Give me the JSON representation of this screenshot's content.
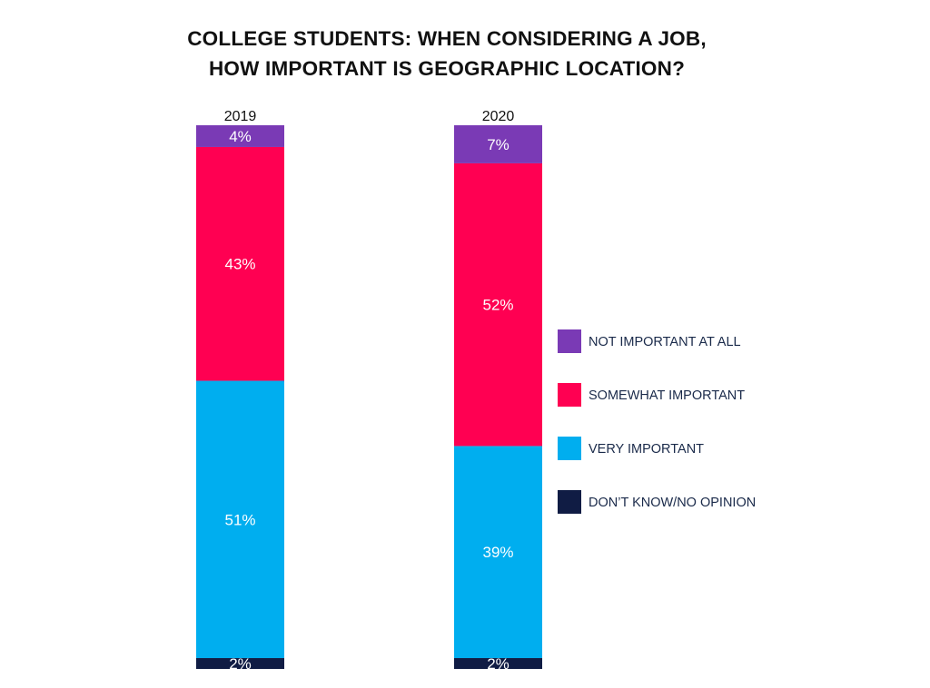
{
  "chart_data": {
    "type": "bar",
    "stacked": true,
    "orientation": "vertical",
    "title_lines": [
      "COLLEGE STUDENTS: WHEN CONSIDERING A JOB,",
      "HOW IMPORTANT IS GEOGRAPHIC LOCATION?"
    ],
    "categories": [
      "2019",
      "2020"
    ],
    "ylim": [
      0,
      100
    ],
    "grid": false,
    "legend_position": "right",
    "series": [
      {
        "name": "DON’T KNOW/NO OPINION",
        "key": "dont-know",
        "color": "#101C44",
        "values": [
          2,
          2
        ],
        "labels": [
          "2%",
          "2%"
        ]
      },
      {
        "name": "VERY IMPORTANT",
        "key": "very-important",
        "color": "#00AEEF",
        "values": [
          51,
          39
        ],
        "labels": [
          "51%",
          "39%"
        ]
      },
      {
        "name": "SOMEWHAT IMPORTANT",
        "key": "somewhat-important",
        "color": "#FF0052",
        "values": [
          43,
          52
        ],
        "labels": [
          "43%",
          "52%"
        ]
      },
      {
        "name": "NOT IMPORTANT AT ALL",
        "key": "not-important",
        "color": "#7A3AB5",
        "values": [
          4,
          7
        ],
        "labels": [
          "4%",
          "7%"
        ]
      }
    ],
    "legend_order": [
      "not-important",
      "somewhat-important",
      "very-important",
      "dont-know"
    ]
  }
}
